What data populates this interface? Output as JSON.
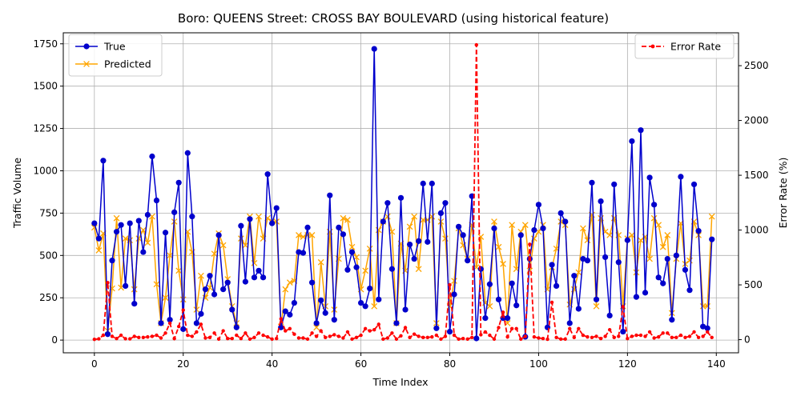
{
  "chart_data": {
    "type": "line",
    "title": "Boro: QUEENS Street: CROSS BAY BOULEVARD (using historical feature)",
    "xlabel": "Time Index",
    "ylabel": "Traffic Volume",
    "ylabel_right": "Error Rate (%)",
    "xlim": [
      -7,
      145
    ],
    "ylim": [
      -75,
      1815
    ],
    "ylim_right": [
      -120,
      2800
    ],
    "xticks": [
      0,
      20,
      40,
      60,
      80,
      100,
      120,
      140
    ],
    "yticks": [
      0,
      250,
      500,
      750,
      1000,
      1250,
      1500,
      1750
    ],
    "yticks_right": [
      0,
      500,
      1000,
      1500,
      2000,
      2500
    ],
    "grid": true,
    "legend_left_placement": "upper-left",
    "legend_right_placement": "upper-right",
    "series": [
      {
        "name": "True",
        "axis": "left",
        "color": "#0000cc",
        "marker": "circle",
        "style": "solid",
        "values": [
          690,
          600,
          1060,
          35,
          470,
          640,
          680,
          320,
          690,
          215,
          705,
          520,
          740,
          1085,
          825,
          100,
          635,
          120,
          755,
          930,
          65,
          1105,
          730,
          100,
          155,
          300,
          380,
          270,
          620,
          300,
          340,
          180,
          75,
          675,
          345,
          715,
          370,
          410,
          370,
          980,
          690,
          780,
          75,
          170,
          150,
          220,
          520,
          515,
          665,
          340,
          100,
          235,
          160,
          855,
          120,
          665,
          625,
          415,
          520,
          430,
          220,
          200,
          305,
          1720,
          240,
          700,
          810,
          420,
          100,
          840,
          180,
          565,
          480,
          585,
          925,
          580,
          925,
          70,
          750,
          810,
          50,
          270,
          670,
          620,
          470,
          850,
          10,
          420,
          130,
          330,
          660,
          240,
          130,
          130,
          335,
          205,
          620,
          20,
          480,
          650,
          800,
          660,
          75,
          445,
          320,
          750,
          700,
          100,
          380,
          185,
          480,
          470,
          930,
          240,
          820,
          490,
          145,
          920,
          460,
          50,
          590,
          1175,
          255,
          1240,
          280,
          960,
          800,
          370,
          335,
          480,
          120,
          500,
          965,
          415,
          295,
          920,
          645,
          80,
          70,
          595
        ]
      },
      {
        "name": "Predicted",
        "axis": "left",
        "color": "#ffa500",
        "marker": "x",
        "style": "solid",
        "values": [
          665,
          530,
          630,
          55,
          305,
          720,
          310,
          600,
          590,
          300,
          600,
          650,
          575,
          730,
          330,
          100,
          250,
          500,
          700,
          410,
          240,
          640,
          520,
          180,
          380,
          250,
          310,
          510,
          630,
          560,
          360,
          200,
          100,
          600,
          560,
          730,
          455,
          730,
          600,
          720,
          700,
          700,
          80,
          300,
          340,
          350,
          620,
          610,
          620,
          620,
          75,
          460,
          200,
          640,
          180,
          480,
          720,
          710,
          550,
          490,
          300,
          410,
          540,
          200,
          650,
          700,
          730,
          640,
          100,
          570,
          410,
          670,
          730,
          420,
          710,
          710,
          730,
          100,
          700,
          600,
          200,
          350,
          660,
          560,
          480,
          680,
          430,
          610,
          220,
          200,
          700,
          550,
          450,
          100,
          680,
          420,
          640,
          680,
          410,
          600,
          640,
          680,
          300,
          430,
          540,
          700,
          680,
          210,
          300,
          400,
          660,
          590,
          740,
          200,
          720,
          640,
          620,
          720,
          620,
          200,
          600,
          620,
          400,
          590,
          610,
          480,
          720,
          680,
          550,
          620,
          160,
          480,
          690,
          450,
          470,
          700,
          620,
          200,
          200,
          730
        ]
      },
      {
        "name": "Error Rate",
        "axis": "right",
        "color": "#ff0000",
        "marker": "dot",
        "style": "dashed",
        "values": [
          3,
          7,
          40,
          520,
          30,
          10,
          40,
          8,
          7,
          30,
          20,
          20,
          25,
          30,
          40,
          15,
          60,
          150,
          10,
          120,
          270,
          40,
          30,
          70,
          140,
          15,
          20,
          60,
          5,
          80,
          10,
          10,
          40,
          10,
          60,
          5,
          20,
          60,
          40,
          25,
          5,
          10,
          190,
          80,
          100,
          50,
          15,
          15,
          5,
          60,
          30,
          80,
          20,
          30,
          45,
          30,
          15,
          70,
          5,
          20,
          40,
          100,
          80,
          90,
          140,
          5,
          15,
          60,
          5,
          35,
          110,
          20,
          50,
          30,
          20,
          20,
          25,
          40,
          5,
          30,
          500,
          40,
          5,
          10,
          5,
          20,
          2690,
          45,
          70,
          40,
          5,
          110,
          250,
          25,
          100,
          100,
          5,
          30,
          870,
          25,
          15,
          10,
          4,
          340,
          20,
          5,
          5,
          100,
          20,
          100,
          40,
          25,
          20,
          30,
          10,
          30,
          90,
          20,
          30,
          300,
          10,
          30,
          40,
          40,
          30,
          70,
          15,
          25,
          60,
          60,
          20,
          20,
          40,
          20,
          30,
          70,
          20,
          30,
          70,
          20
        ]
      }
    ]
  }
}
